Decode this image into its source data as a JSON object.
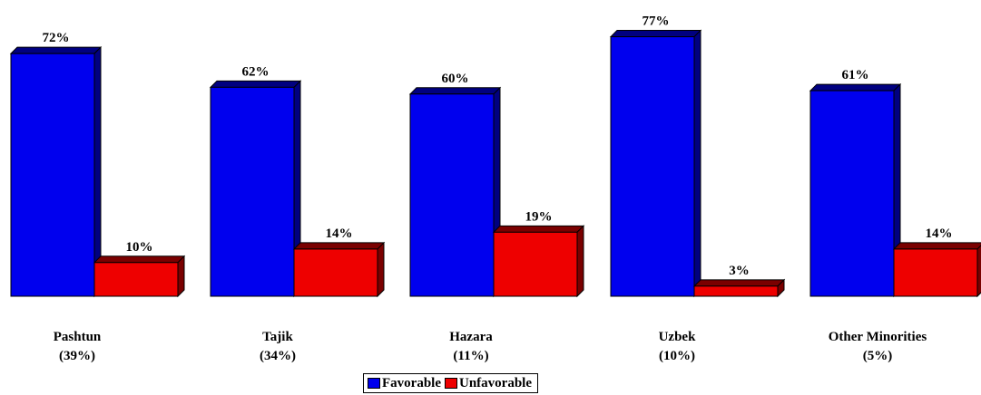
{
  "chart_data": {
    "type": "bar",
    "categories": [
      "Pashtun\n(39%)",
      "Tajik\n(34%)",
      "Hazara\n(11%)",
      "Uzbek\n(10%)",
      "Other Minorities\n(5%)"
    ],
    "category_lines": [
      [
        "Pashtun",
        "(39%)"
      ],
      [
        "Tajik",
        "(34%)"
      ],
      [
        "Hazara",
        "(11%)"
      ],
      [
        "Uzbek",
        "(10%)"
      ],
      [
        "Other Minorities",
        "(5%)"
      ]
    ],
    "series": [
      {
        "name": "Favorable",
        "values": [
          72,
          62,
          60,
          77,
          61
        ],
        "labels": [
          "72%",
          "62%",
          "60%",
          "77%",
          "61%"
        ],
        "color": "#0000ee",
        "side_color": "#000080"
      },
      {
        "name": "Unfavorable",
        "values": [
          10,
          14,
          19,
          3,
          14
        ],
        "labels": [
          "10%",
          "14%",
          "19%",
          "3%",
          "14%"
        ],
        "color": "#ee0000",
        "side_color": "#7a0000"
      }
    ],
    "ylim": [
      0,
      100
    ],
    "grid": false,
    "legend_position": "bottom"
  }
}
